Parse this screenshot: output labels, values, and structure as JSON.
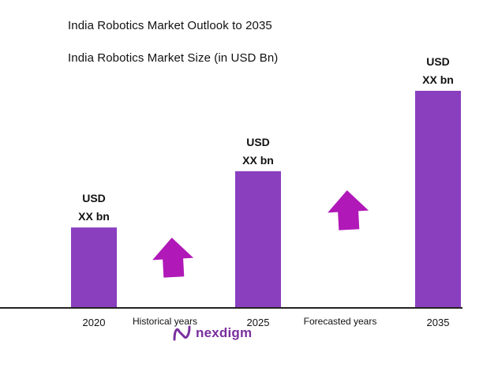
{
  "title": "India Robotics Market Outlook to 2035",
  "subtitle": "India Robotics Market Size (in USD Bn)",
  "brand": {
    "name": "nexdigm",
    "color": "#7a2f9e",
    "icon": "nexdigm-logo-icon"
  },
  "colors": {
    "bar": "#8a3fbf",
    "arrow": "#b019b8",
    "axis": "#222222"
  },
  "chart_data": {
    "type": "bar",
    "categories": [
      "2020",
      "2025",
      "2035"
    ],
    "values": [
      1.0,
      1.7,
      2.7
    ],
    "value_unit": "relative (actual values undisclosed)",
    "data_labels": [
      {
        "line1": "USD",
        "line2": "XX bn"
      },
      {
        "line1": "USD",
        "line2": "XX bn"
      },
      {
        "line1": "USD",
        "line2": "XX bn"
      }
    ],
    "annotations": [
      {
        "label": "Historical years",
        "arrow": "up-arrow-icon",
        "between": [
          "2020",
          "2025"
        ]
      },
      {
        "label": "Forecasted years",
        "arrow": "up-arrow-icon",
        "between": [
          "2025",
          "2035"
        ]
      }
    ],
    "title": "India Robotics Market Size (in USD Bn)",
    "xlabel": "",
    "ylabel": "",
    "ylim": [
      0,
      2.8
    ],
    "grid": false,
    "legend": "none"
  }
}
